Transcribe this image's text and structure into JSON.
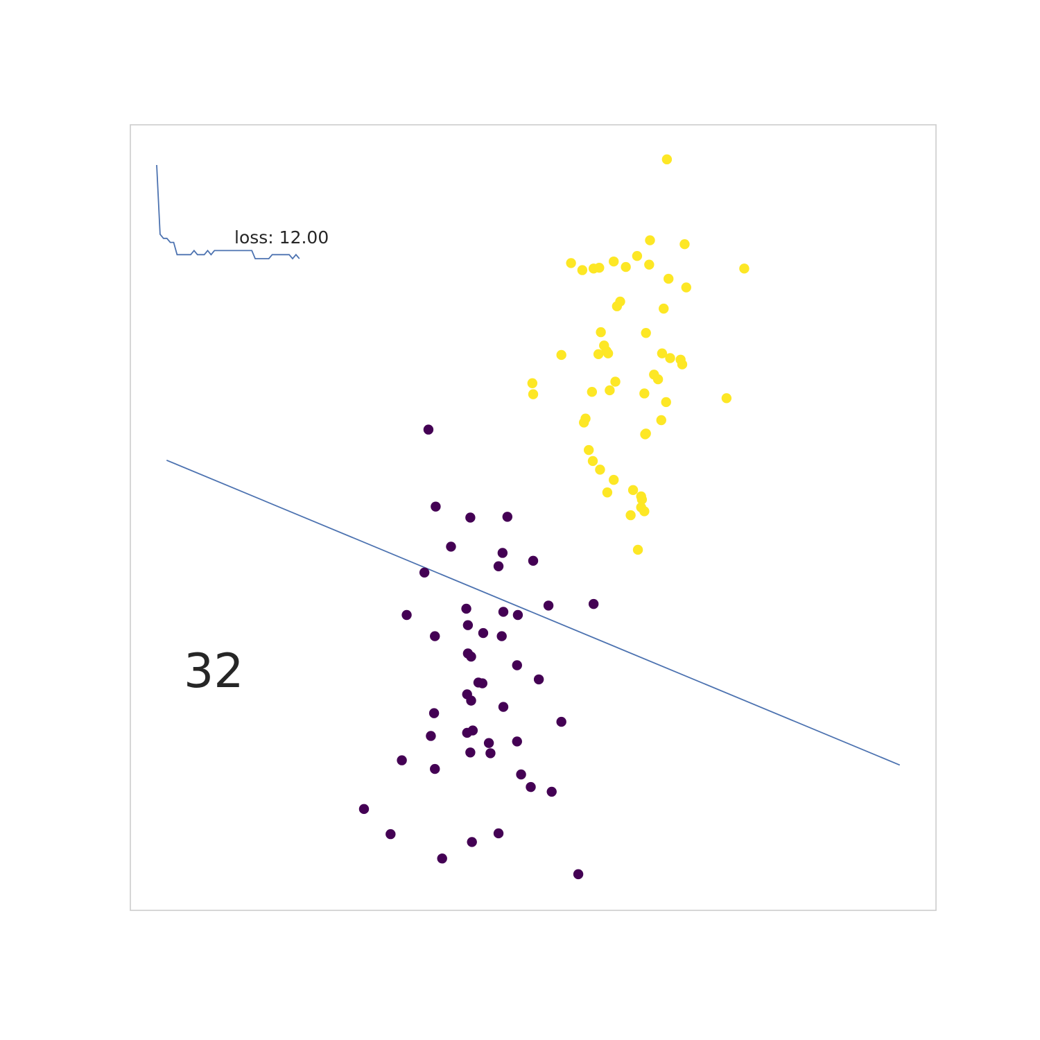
{
  "chart_data": {
    "type": "scatter",
    "title": "",
    "xlabel": "",
    "ylabel": "",
    "xlim": [
      0,
      100
    ],
    "ylim": [
      0,
      100
    ],
    "grid": false,
    "legend": "none",
    "colors": {
      "class_0": "#440154",
      "class_1": "#fde725",
      "line": "#4c72b0",
      "frame": "#cccccc",
      "text": "#262626"
    },
    "annotations": {
      "loss_label": "loss: 12.00",
      "iteration": "32"
    },
    "decision_boundary": {
      "x": [
        4.5,
        95.5
      ],
      "y": [
        57.3,
        18.5
      ]
    },
    "loss_history": {
      "values": [
        48.0,
        31.0,
        30.0,
        30.0,
        29.0,
        29.0,
        26.0,
        26.0,
        26.0,
        26.0,
        26.0,
        27.0,
        26.0,
        26.0,
        26.0,
        27.0,
        26.0,
        27.0,
        27.0,
        27.0,
        27.0,
        27.0,
        27.0,
        27.0,
        27.0,
        27.0,
        27.0,
        27.0,
        27.0,
        25.0,
        25.0,
        25.0,
        25.0,
        25.0,
        26.0,
        26.0,
        26.0,
        26.0,
        26.0,
        26.0,
        25.0,
        26.0,
        25.0
      ],
      "ymin": 0,
      "ymax": 50
    },
    "series": [
      {
        "class": 0,
        "points": [
          [
            37.0,
            61.2
          ],
          [
            37.9,
            51.4
          ],
          [
            42.2,
            50.0
          ],
          [
            46.8,
            50.1
          ],
          [
            39.8,
            46.3
          ],
          [
            46.2,
            45.5
          ],
          [
            45.7,
            43.8
          ],
          [
            50.0,
            44.5
          ],
          [
            36.5,
            43.0
          ],
          [
            41.7,
            38.4
          ],
          [
            57.5,
            39.0
          ],
          [
            34.3,
            37.6
          ],
          [
            46.3,
            38.0
          ],
          [
            51.9,
            38.8
          ],
          [
            41.9,
            36.3
          ],
          [
            48.1,
            37.6
          ],
          [
            37.8,
            34.9
          ],
          [
            43.8,
            35.3
          ],
          [
            46.1,
            34.9
          ],
          [
            41.9,
            32.7
          ],
          [
            42.3,
            32.3
          ],
          [
            48.0,
            31.2
          ],
          [
            50.7,
            29.4
          ],
          [
            43.2,
            29.0
          ],
          [
            43.7,
            28.9
          ],
          [
            41.8,
            27.5
          ],
          [
            42.3,
            26.7
          ],
          [
            46.3,
            25.9
          ],
          [
            37.7,
            25.1
          ],
          [
            53.5,
            24.0
          ],
          [
            42.5,
            22.9
          ],
          [
            41.8,
            22.6
          ],
          [
            37.3,
            22.2
          ],
          [
            44.5,
            21.3
          ],
          [
            48.0,
            21.5
          ],
          [
            42.2,
            20.1
          ],
          [
            44.7,
            20.0
          ],
          [
            33.7,
            19.1
          ],
          [
            37.8,
            18.0
          ],
          [
            48.5,
            17.3
          ],
          [
            49.7,
            15.7
          ],
          [
            52.3,
            15.1
          ],
          [
            29.0,
            12.9
          ],
          [
            32.3,
            9.7
          ],
          [
            45.7,
            9.8
          ],
          [
            42.4,
            8.7
          ],
          [
            38.7,
            6.6
          ],
          [
            55.6,
            4.6
          ]
        ]
      },
      {
        "class": 1,
        "points": [
          [
            66.6,
            95.6
          ],
          [
            64.5,
            85.3
          ],
          [
            68.8,
            84.8
          ],
          [
            54.7,
            82.4
          ],
          [
            60.0,
            82.6
          ],
          [
            62.9,
            83.3
          ],
          [
            61.5,
            81.9
          ],
          [
            56.1,
            81.5
          ],
          [
            57.5,
            81.7
          ],
          [
            58.2,
            81.8
          ],
          [
            64.4,
            82.2
          ],
          [
            76.2,
            81.7
          ],
          [
            69.0,
            79.3
          ],
          [
            66.8,
            80.4
          ],
          [
            60.8,
            77.5
          ],
          [
            60.4,
            76.9
          ],
          [
            66.2,
            76.6
          ],
          [
            64.0,
            73.5
          ],
          [
            58.4,
            73.6
          ],
          [
            59.1,
            71.2
          ],
          [
            58.8,
            71.9
          ],
          [
            53.5,
            70.7
          ],
          [
            58.1,
            70.8
          ],
          [
            67.0,
            70.3
          ],
          [
            59.3,
            70.9
          ],
          [
            68.3,
            70.1
          ],
          [
            66.0,
            70.9
          ],
          [
            68.5,
            69.5
          ],
          [
            65.0,
            68.2
          ],
          [
            50.0,
            65.7
          ],
          [
            60.2,
            67.3
          ],
          [
            65.5,
            67.6
          ],
          [
            49.9,
            67.1
          ],
          [
            57.3,
            66.0
          ],
          [
            59.5,
            66.2
          ],
          [
            63.8,
            65.8
          ],
          [
            66.5,
            64.7
          ],
          [
            74.0,
            65.2
          ],
          [
            56.5,
            62.6
          ],
          [
            63.9,
            60.6
          ],
          [
            56.3,
            62.1
          ],
          [
            65.9,
            62.4
          ],
          [
            64.0,
            60.7
          ],
          [
            56.9,
            58.6
          ],
          [
            58.3,
            56.1
          ],
          [
            57.4,
            57.2
          ],
          [
            60.0,
            54.8
          ],
          [
            59.2,
            53.2
          ],
          [
            63.5,
            52.3
          ],
          [
            62.4,
            53.5
          ],
          [
            63.4,
            52.7
          ],
          [
            62.1,
            50.3
          ],
          [
            63.8,
            50.8
          ],
          [
            63.4,
            51.3
          ],
          [
            63.0,
            45.9
          ]
        ]
      }
    ]
  }
}
